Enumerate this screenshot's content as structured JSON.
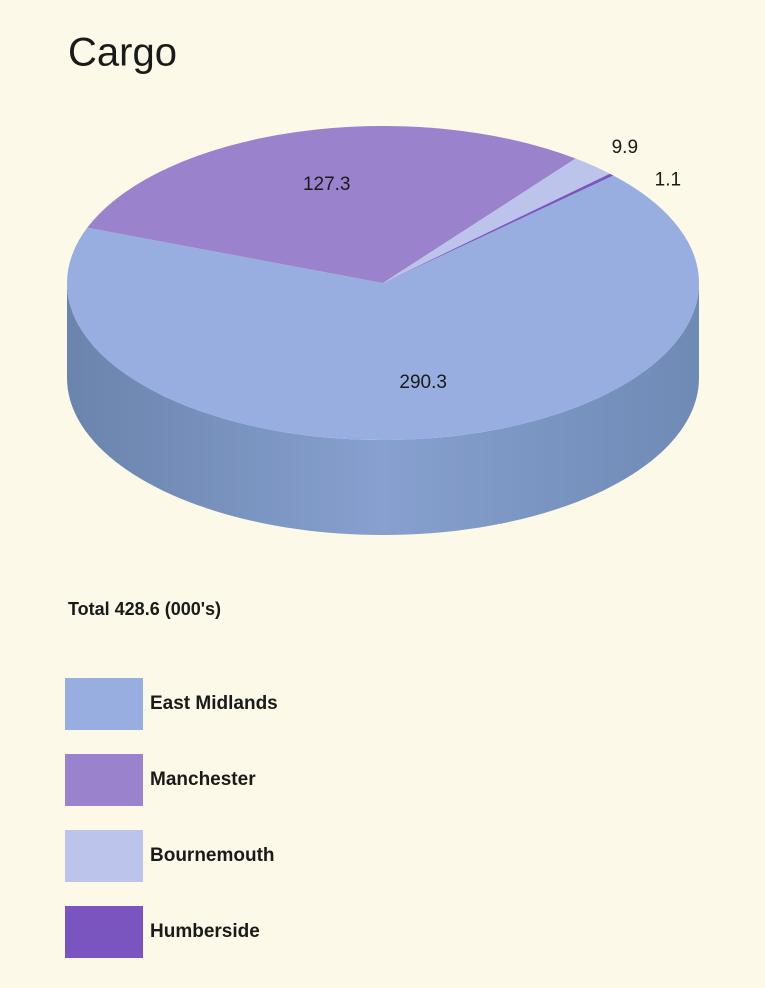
{
  "chart_data": {
    "type": "pie",
    "title": "Cargo",
    "subtitle": "Total 428.6 (000's)",
    "categories": [
      "East Midlands",
      "Manchester",
      "Bournemouth",
      "Humberside"
    ],
    "values": [
      290.3,
      127.3,
      9.9,
      1.1
    ],
    "colors": [
      "#98aee0",
      "#9b82cc",
      "#bcc4eb",
      "#7a55c0"
    ],
    "legend": "bottom-left"
  }
}
